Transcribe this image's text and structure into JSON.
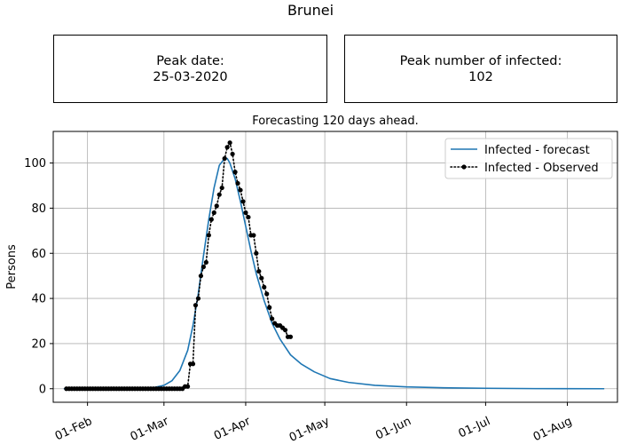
{
  "figure": {
    "title": "Brunei",
    "peak_date": {
      "label": "Peak date:",
      "value": "25-03-2020"
    },
    "peak_infected": {
      "label": "Peak number of infected:",
      "value": "102"
    }
  },
  "chart_data": {
    "type": "line",
    "title": "Forecasting 120 days ahead.",
    "xlabel": "",
    "ylabel": "Persons",
    "x_type": "date",
    "xlim": [
      "2020-01-19",
      "2020-08-20"
    ],
    "ylim": [
      -6,
      114
    ],
    "x_ticks": [
      "2020-02-01",
      "2020-03-01",
      "2020-04-01",
      "2020-05-01",
      "2020-06-01",
      "2020-07-01",
      "2020-08-01"
    ],
    "x_tick_labels": [
      "01-Feb",
      "01-Mar",
      "01-Apr",
      "01-May",
      "01-Jun",
      "01-Jul",
      "01-Aug"
    ],
    "y_ticks": [
      0,
      20,
      40,
      60,
      80,
      100
    ],
    "y_tick_labels": [
      "0",
      "20",
      "40",
      "60",
      "80",
      "100"
    ],
    "grid": true,
    "legend_position": "top-right",
    "series": [
      {
        "name": "Infected - forecast",
        "style": "solid",
        "color": "#1f77b4",
        "x": [
          "2020-01-23",
          "2020-02-10",
          "2020-02-20",
          "2020-02-26",
          "2020-03-01",
          "2020-03-04",
          "2020-03-07",
          "2020-03-10",
          "2020-03-12",
          "2020-03-14",
          "2020-03-16",
          "2020-03-18",
          "2020-03-20",
          "2020-03-22",
          "2020-03-24",
          "2020-03-25",
          "2020-03-26",
          "2020-03-28",
          "2020-03-30",
          "2020-04-01",
          "2020-04-03",
          "2020-04-05",
          "2020-04-08",
          "2020-04-11",
          "2020-04-14",
          "2020-04-18",
          "2020-04-22",
          "2020-04-27",
          "2020-05-03",
          "2020-05-10",
          "2020-05-20",
          "2020-06-01",
          "2020-06-15",
          "2020-07-01",
          "2020-07-20",
          "2020-08-15"
        ],
        "y": [
          0,
          0,
          0.1,
          0.5,
          1.5,
          3.5,
          8,
          17,
          28,
          42,
          59,
          75,
          89,
          99,
          102,
          102,
          100,
          93,
          83,
          72,
          61,
          51,
          39,
          29,
          22,
          15,
          11,
          7.5,
          4.5,
          2.8,
          1.5,
          0.8,
          0.4,
          0.2,
          0.05,
          0
        ]
      },
      {
        "name": "Infected - Observed",
        "style": "dotted",
        "marker": "circle",
        "color": "#000000",
        "x": [
          "2020-01-24",
          "2020-01-25",
          "2020-01-26",
          "2020-01-27",
          "2020-01-28",
          "2020-01-29",
          "2020-01-30",
          "2020-01-31",
          "2020-02-01",
          "2020-02-02",
          "2020-02-03",
          "2020-02-04",
          "2020-02-05",
          "2020-02-06",
          "2020-02-07",
          "2020-02-08",
          "2020-02-09",
          "2020-02-10",
          "2020-02-11",
          "2020-02-12",
          "2020-02-13",
          "2020-02-14",
          "2020-02-15",
          "2020-02-16",
          "2020-02-17",
          "2020-02-18",
          "2020-02-19",
          "2020-02-20",
          "2020-02-21",
          "2020-02-22",
          "2020-02-23",
          "2020-02-24",
          "2020-02-25",
          "2020-02-26",
          "2020-02-27",
          "2020-02-28",
          "2020-02-29",
          "2020-03-01",
          "2020-03-02",
          "2020-03-03",
          "2020-03-04",
          "2020-03-05",
          "2020-03-06",
          "2020-03-07",
          "2020-03-08",
          "2020-03-09",
          "2020-03-10",
          "2020-03-11",
          "2020-03-12",
          "2020-03-13",
          "2020-03-14",
          "2020-03-15",
          "2020-03-16",
          "2020-03-17",
          "2020-03-18",
          "2020-03-19",
          "2020-03-20",
          "2020-03-21",
          "2020-03-22",
          "2020-03-23",
          "2020-03-24",
          "2020-03-25",
          "2020-03-26",
          "2020-03-27",
          "2020-03-28",
          "2020-03-29",
          "2020-03-30",
          "2020-03-31",
          "2020-04-01",
          "2020-04-02",
          "2020-04-03",
          "2020-04-04",
          "2020-04-05",
          "2020-04-06",
          "2020-04-07",
          "2020-04-08",
          "2020-04-09",
          "2020-04-10",
          "2020-04-11",
          "2020-04-12",
          "2020-04-13",
          "2020-04-14",
          "2020-04-15",
          "2020-04-16",
          "2020-04-17",
          "2020-04-18"
        ],
        "y": [
          0,
          0,
          0,
          0,
          0,
          0,
          0,
          0,
          0,
          0,
          0,
          0,
          0,
          0,
          0,
          0,
          0,
          0,
          0,
          0,
          0,
          0,
          0,
          0,
          0,
          0,
          0,
          0,
          0,
          0,
          0,
          0,
          0,
          0,
          0,
          0,
          0,
          0,
          0,
          0,
          0,
          0,
          0,
          0,
          0,
          1,
          1,
          11,
          11,
          37,
          40,
          50,
          54,
          56,
          68,
          75,
          78,
          81,
          86,
          89,
          102,
          107,
          109,
          104,
          96,
          91,
          88,
          83,
          78,
          76,
          68,
          68,
          60,
          52,
          49,
          45,
          42,
          36,
          31,
          29,
          28,
          28,
          27,
          26,
          23,
          23
        ]
      }
    ]
  }
}
